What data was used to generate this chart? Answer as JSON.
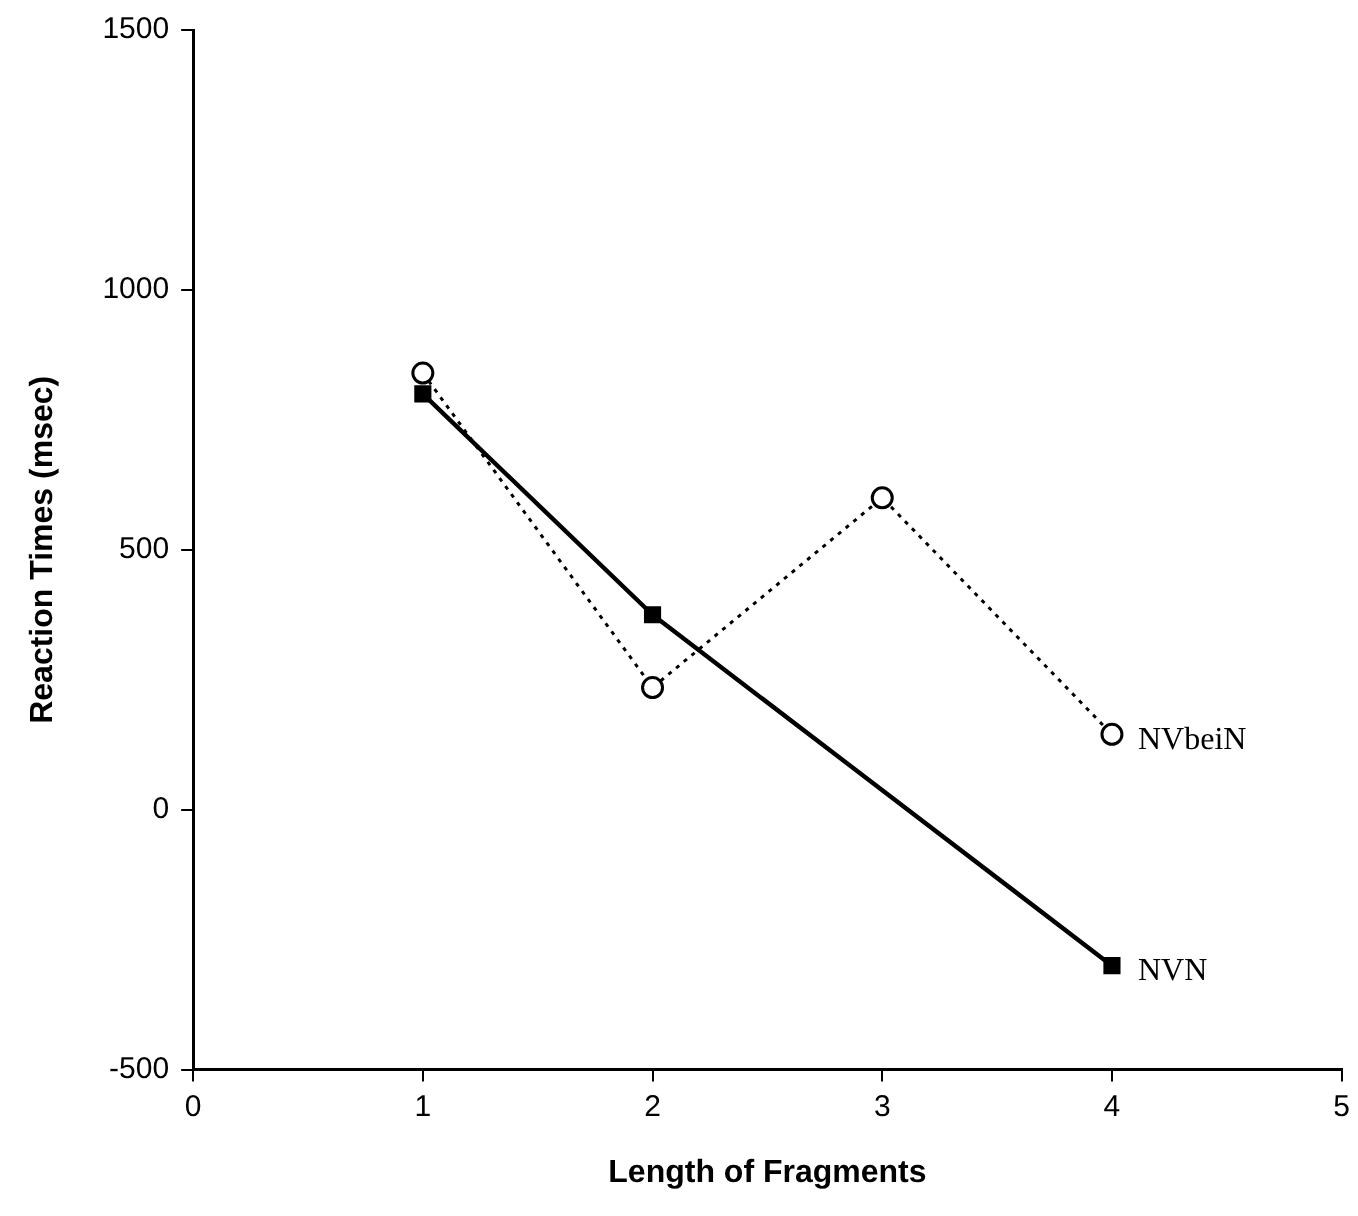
{
  "chart_data": {
    "type": "line",
    "xlabel": "Length of Fragments",
    "ylabel": "Reaction Times (msec)",
    "x": [
      1,
      2,
      3,
      4
    ],
    "series": [
      {
        "name": "NVbeiN",
        "color": "#000000",
        "values": [
          840,
          235,
          600,
          145
        ],
        "marker": "circle",
        "line_style": "dotted"
      },
      {
        "name": "NVN",
        "color": "#000000",
        "x": [
          1,
          2,
          4
        ],
        "values": [
          800,
          375,
          -300
        ],
        "marker": "square",
        "line_style": "solid"
      }
    ],
    "xlim": [
      0,
      5
    ],
    "xticks": [
      0,
      1,
      2,
      3,
      4,
      5
    ],
    "ylim": [
      -500,
      1500
    ],
    "yticks": [
      -500,
      0,
      500,
      1000,
      1500
    ],
    "grid": false,
    "legend": false
  }
}
